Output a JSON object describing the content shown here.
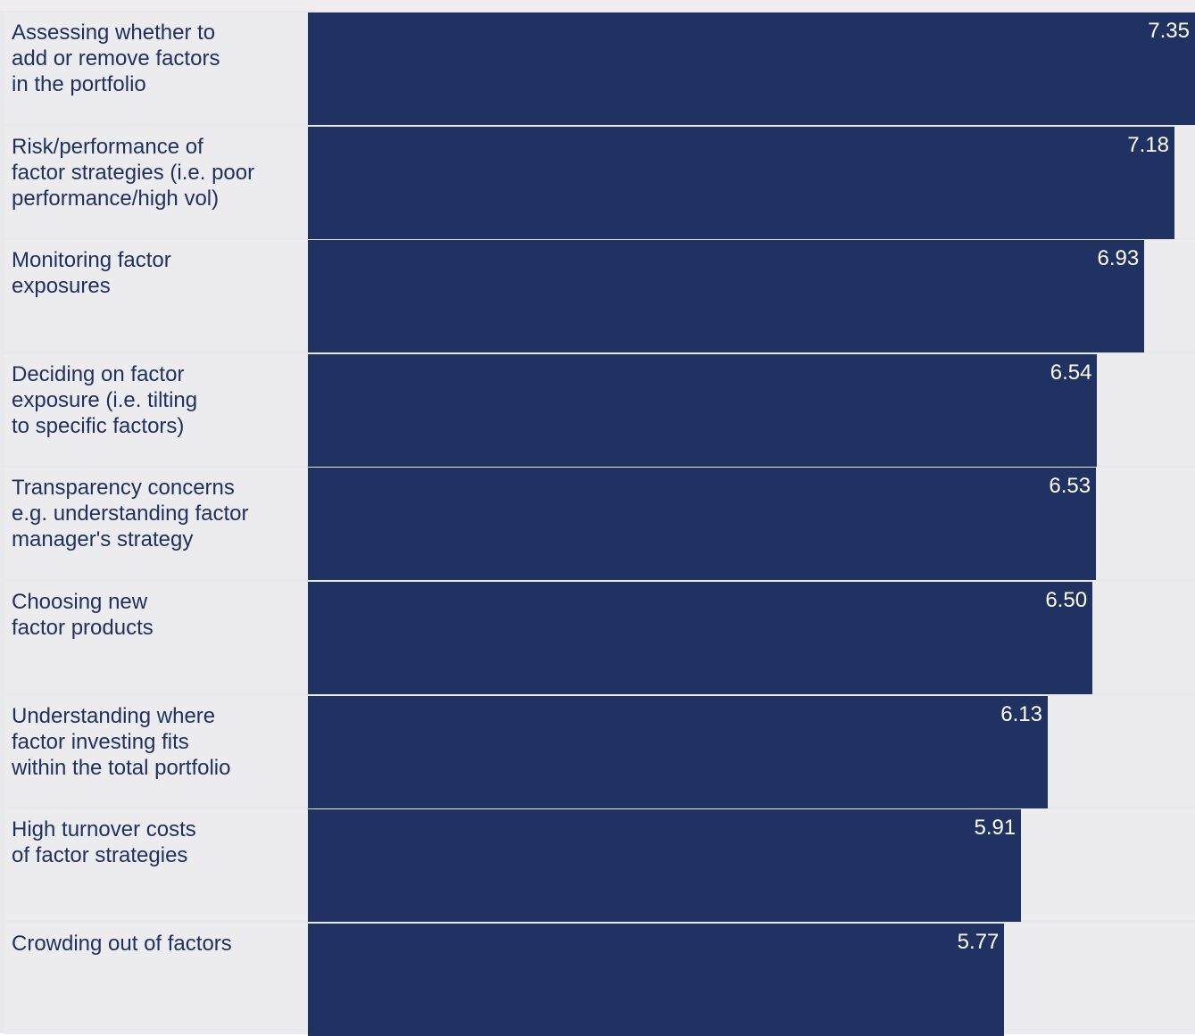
{
  "chart_data": {
    "type": "bar",
    "orientation": "horizontal",
    "categories": [
      "Assessing whether to\nadd or remove factors\nin the portfolio",
      "Risk/performance of\nfactor strategies (i.e. poor\nperformance/high vol)",
      "Monitoring factor\nexposures",
      "Deciding on factor\nexposure (i.e. tilting\nto specific factors)",
      "Transparency concerns\ne.g. understanding factor\nmanager's strategy",
      "Choosing new\nfactor products",
      "Understanding where\nfactor investing fits\nwithin the total portfolio",
      "High turnover costs\nof factor strategies",
      "Crowding out of factors"
    ],
    "values": [
      7.35,
      7.18,
      6.93,
      6.54,
      6.53,
      6.5,
      6.13,
      5.91,
      5.77
    ],
    "value_labels": [
      "7.35",
      "7.18",
      "6.93",
      "6.54",
      "6.53",
      "6.50",
      "6.13",
      "5.91",
      "5.77"
    ],
    "xlim": [
      0,
      7.35
    ],
    "grid": false,
    "legend": "none",
    "title": "",
    "xlabel": "",
    "ylabel": ""
  },
  "colors": {
    "bar": "#203262",
    "label_text": "#1f3163",
    "value_text": "#ffffff",
    "row_background": "#ececee",
    "background": "#e9e9eb"
  }
}
